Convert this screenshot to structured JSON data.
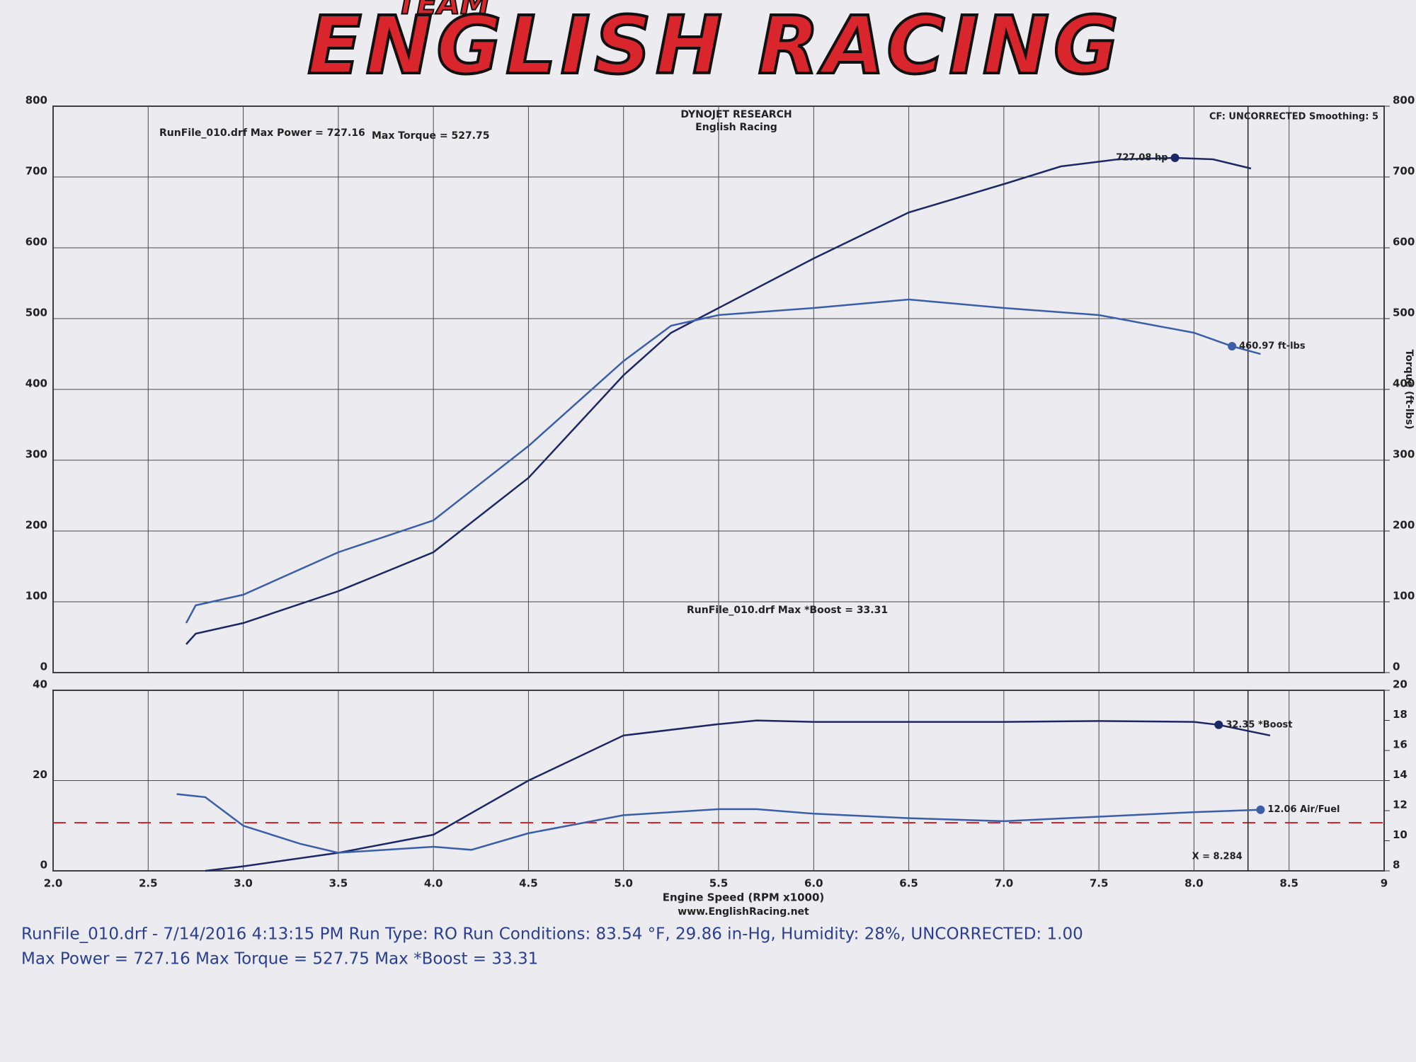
{
  "header": {
    "team": "TEAM",
    "brand": "ENGLISH RACING"
  },
  "chart_data": [
    {
      "type": "line",
      "title": "DYNOJET RESEARCH",
      "subtitle": "English Racing",
      "note_right": "CF: UNCORRECTED  Smoothing: 5",
      "annotations": [
        "RunFile_010.drf Max Power = 727.16",
        "Max Torque = 527.75",
        "RunFile_010.drf Max *Boost = 33.31"
      ],
      "y2label": "Torque (ft-lbs)",
      "xlim": [
        2,
        9
      ],
      "ylim": [
        0,
        800
      ],
      "yticks": [
        0,
        100,
        200,
        300,
        400,
        500,
        600,
        700,
        800
      ],
      "y2lim": [
        0,
        800
      ],
      "y2ticks": [
        0,
        100,
        200,
        300,
        400,
        500,
        600,
        700,
        800
      ],
      "grid": true,
      "series": [
        {
          "name": "Power",
          "color": "#1c2766",
          "x": [
            2.7,
            2.75,
            3.0,
            3.5,
            4.0,
            4.5,
            5.0,
            5.25,
            5.5,
            6.0,
            6.5,
            7.0,
            7.3,
            7.6,
            7.9,
            8.1,
            8.3
          ],
          "values": [
            40,
            55,
            70,
            115,
            170,
            275,
            420,
            480,
            515,
            585,
            650,
            690,
            715,
            725,
            727,
            725,
            712
          ],
          "marker": {
            "x": 7.9,
            "value": 727.08,
            "label": "727.08 hp"
          }
        },
        {
          "name": "Torque",
          "color": "#3a5ea8",
          "axis": "y2",
          "x": [
            2.7,
            2.75,
            3.0,
            3.5,
            4.0,
            4.5,
            5.0,
            5.25,
            5.5,
            6.0,
            6.5,
            7.0,
            7.5,
            8.0,
            8.2,
            8.35
          ],
          "values": [
            70,
            95,
            110,
            170,
            215,
            320,
            440,
            490,
            505,
            515,
            527,
            515,
            505,
            480,
            461,
            450
          ],
          "marker": {
            "x": 8.2,
            "value": 460.97,
            "label": "460.97 ft-lbs"
          }
        }
      ]
    },
    {
      "type": "line",
      "xlabel": "Engine Speed (RPM x1000)",
      "note_bottom": "www.EnglishRacing.net",
      "xlim": [
        2,
        9
      ],
      "xticks": [
        {
          "value": 2,
          "label": "2.0"
        },
        2.5,
        {
          "value": 3,
          "label": "3.0"
        },
        3.5,
        {
          "value": 4,
          "label": "4.0"
        },
        4.5,
        {
          "value": 5,
          "label": "5.0"
        },
        5.5,
        {
          "value": 6,
          "label": "6.0"
        },
        6.5,
        {
          "value": 7,
          "label": "7.0"
        },
        7.5,
        {
          "value": 8,
          "label": "8.0"
        },
        8.5,
        9
      ],
      "ylim": [
        0,
        40
      ],
      "yticks": [
        0,
        20,
        40
      ],
      "y2lim": [
        8,
        20
      ],
      "y2ticks": [
        8,
        10,
        12,
        14,
        16,
        18,
        20
      ],
      "grid": true,
      "reference_line": {
        "value": 11.2,
        "axis": "y2",
        "color": "#d9262c",
        "dashed": true
      },
      "cursor": {
        "x": 8.284,
        "label": "X = 8.284"
      },
      "series": [
        {
          "name": "*Boost",
          "color": "#1c2766",
          "x": [
            2.8,
            3.0,
            3.5,
            4.0,
            4.5,
            5.0,
            5.5,
            5.7,
            6.0,
            7.0,
            7.5,
            8.0,
            8.13,
            8.4
          ],
          "values": [
            0,
            1,
            4,
            8,
            20,
            30,
            32.5,
            33.31,
            33,
            33,
            33.2,
            33,
            32.35,
            30
          ],
          "marker": {
            "x": 8.13,
            "value": 32.35,
            "label": "32.35 *Boost"
          }
        },
        {
          "name": "Air/Fuel",
          "color": "#3a5ea8",
          "axis": "y2",
          "x": [
            2.65,
            2.8,
            3.0,
            3.3,
            3.5,
            4.0,
            4.2,
            4.5,
            5.0,
            5.5,
            5.7,
            6.0,
            6.5,
            7.0,
            7.5,
            8.0,
            8.35
          ],
          "values": [
            13.1,
            12.9,
            11,
            9.8,
            9.2,
            9.6,
            9.4,
            10.5,
            11.7,
            12.1,
            12.1,
            11.8,
            11.5,
            11.3,
            11.6,
            11.9,
            12.06
          ],
          "marker": {
            "x": 8.35,
            "value": 12.06,
            "label": "12.06 Air/Fuel"
          }
        }
      ]
    }
  ],
  "footer": {
    "line1": "RunFile_010.drf - 7/14/2016 4:13:15 PM  Run Type: RO  Run Conditions: 83.54 °F, 29.86 in-Hg,  Humidity:  28%, UNCORRECTED: 1.00",
    "line2": "Max Power = 727.16  Max Torque = 527.75  Max *Boost = 33.31"
  }
}
